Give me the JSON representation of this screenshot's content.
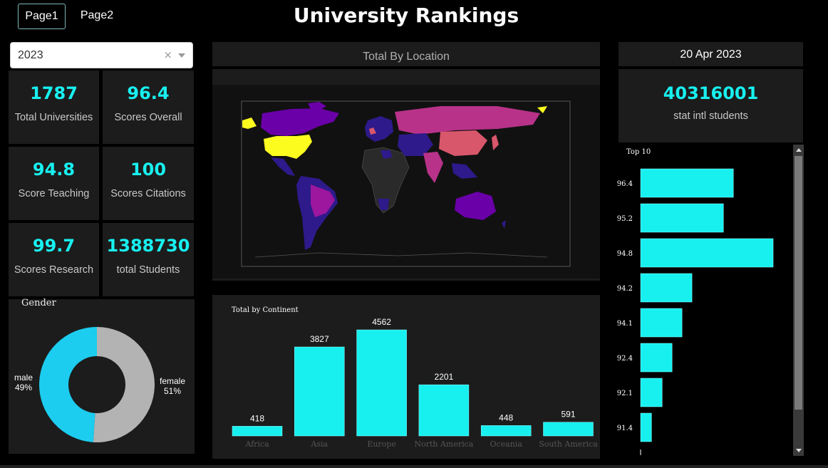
{
  "nav": {
    "tabs": [
      {
        "label": "Page1"
      },
      {
        "label": "Page2"
      }
    ]
  },
  "header": {
    "title": "University Rankings"
  },
  "filter": {
    "year_value": "2023",
    "clear_glyph": "×"
  },
  "kpis": [
    {
      "value": "1787",
      "label": "Total Universities"
    },
    {
      "value": "96.4",
      "label": "Scores Overall"
    },
    {
      "value": "94.8",
      "label": "Score Teaching"
    },
    {
      "value": "100",
      "label": "Scores Citations"
    },
    {
      "value": "99.7",
      "label": "Scores Research"
    },
    {
      "value": "1388730",
      "label": "total Students"
    }
  ],
  "date": "20 Apr 2023",
  "intl": {
    "value": "40316001",
    "label": "stat intl students"
  },
  "map": {
    "title": "Total By Location"
  },
  "colors": {
    "accent": "#18f0f0",
    "card": "#1c1c1c",
    "male": "#1ccdef",
    "female": "#b3b3b3"
  },
  "chart_data": [
    {
      "type": "pie",
      "title": "Gender",
      "labels": [
        "male",
        "female"
      ],
      "values": [
        49,
        51
      ],
      "display": [
        "49%",
        "51%"
      ]
    },
    {
      "type": "bar",
      "title": "Total by Continent",
      "categories": [
        "Africa",
        "Asia",
        "Europe",
        "North America",
        "Oceania",
        "South America"
      ],
      "values": [
        418,
        3827,
        4562,
        2201,
        448,
        591
      ],
      "display": [
        "418",
        "3827",
        "4562",
        "2201",
        "448",
        "591"
      ],
      "ylim": [
        0,
        4900
      ]
    },
    {
      "type": "bar",
      "orientation": "horizontal",
      "title": "Top 10",
      "categories": [
        "96.4",
        "95.2",
        "94.8",
        "94.2",
        "94.1",
        "92.4",
        "92.1",
        "91.4"
      ],
      "values": [
        2.8,
        2.5,
        4,
        1.55,
        1.25,
        0.95,
        0.65,
        0.33
      ],
      "xlim": [
        0,
        4.3
      ]
    }
  ]
}
